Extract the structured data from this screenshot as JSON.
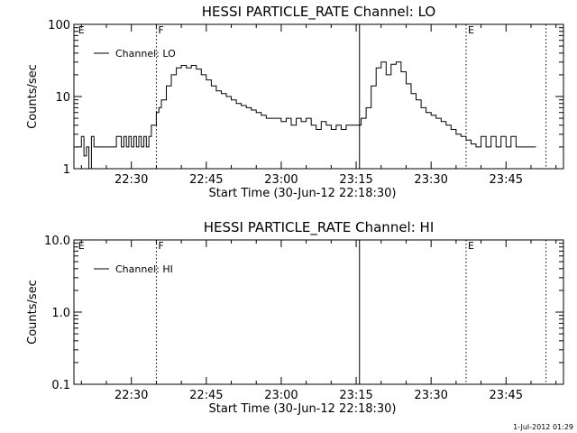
{
  "footer": {
    "timestamp": "1-Jul-2012 01:29"
  },
  "chart_data": [
    {
      "type": "line",
      "title": "HESSI PARTICLE_RATE Channel: LO",
      "ylabel": "Counts/sec",
      "xlabel": "Start Time (30-Jun-12 22:18:30)",
      "y_scale": "log",
      "ylim": [
        1,
        100
      ],
      "y_ticks": [
        1,
        10,
        100
      ],
      "y_tick_labels": [
        "1",
        "10",
        "100"
      ],
      "xlim": [
        "22:18:30",
        "23:56:30"
      ],
      "x_ticks": [
        "22:30",
        "22:45",
        "23:00",
        "23:15",
        "23:30",
        "23:45"
      ],
      "x_tick_labels": [
        "22:30",
        "22:45",
        "23:00",
        "23:15",
        "23:30",
        "23:45"
      ],
      "legend": {
        "position": "top-left",
        "entries": [
          "Channel: LO"
        ]
      },
      "markers": [
        {
          "time": "22:19:00",
          "label": "E",
          "style": "none"
        },
        {
          "time": "22:35:00",
          "label": "F",
          "style": "dotted"
        },
        {
          "time": "23:15:40",
          "label": "",
          "style": "solid"
        },
        {
          "time": "23:37:00",
          "label": "E",
          "style": "dotted"
        },
        {
          "time": "23:53:00",
          "label": "",
          "style": "dotted"
        }
      ],
      "series": [
        {
          "name": "Channel: LO",
          "x": [
            "22:19:00",
            "22:20:00",
            "22:20:30",
            "22:21:00",
            "22:21:30",
            "22:22:00",
            "22:22:30",
            "22:23:00",
            "22:24:00",
            "22:25:00",
            "22:26:00",
            "22:27:00",
            "22:28:00",
            "22:28:30",
            "22:29:00",
            "22:29:30",
            "22:30:00",
            "22:30:30",
            "22:31:00",
            "22:31:30",
            "22:32:00",
            "22:32:30",
            "22:33:00",
            "22:33:30",
            "22:34:00",
            "22:35:00",
            "22:35:30",
            "22:36:00",
            "22:37:00",
            "22:38:00",
            "22:39:00",
            "22:40:00",
            "22:41:00",
            "22:42:00",
            "22:43:00",
            "22:44:00",
            "22:45:00",
            "22:46:00",
            "22:47:00",
            "22:48:00",
            "22:49:00",
            "22:50:00",
            "22:51:00",
            "22:52:00",
            "22:53:00",
            "22:54:00",
            "22:55:00",
            "22:56:00",
            "22:57:00",
            "22:58:00",
            "22:59:00",
            "23:00:00",
            "23:01:00",
            "23:02:00",
            "23:03:00",
            "23:04:00",
            "23:05:00",
            "23:06:00",
            "23:07:00",
            "23:08:00",
            "23:09:00",
            "23:10:00",
            "23:11:00",
            "23:12:00",
            "23:13:00",
            "23:14:00",
            "23:15:00",
            "23:16:00",
            "23:17:00",
            "23:18:00",
            "23:19:00",
            "23:20:00",
            "23:21:00",
            "23:22:00",
            "23:23:00",
            "23:24:00",
            "23:25:00",
            "23:26:00",
            "23:27:00",
            "23:28:00",
            "23:29:00",
            "23:30:00",
            "23:31:00",
            "23:32:00",
            "23:33:00",
            "23:34:00",
            "23:35:00",
            "23:36:00",
            "23:37:00",
            "23:38:00",
            "23:39:00",
            "23:40:00",
            "23:41:00",
            "23:42:00",
            "23:43:00",
            "23:44:00",
            "23:45:00",
            "23:46:00",
            "23:47:00",
            "23:48:00",
            "23:49:00",
            "23:50:00",
            "23:51:00"
          ],
          "y": [
            2,
            2.8,
            1.5,
            2,
            1,
            2.8,
            2,
            2,
            2,
            2,
            2,
            2.8,
            2,
            2.8,
            2,
            2.8,
            2,
            2.8,
            2,
            2.8,
            2,
            2.8,
            2,
            2.8,
            4,
            6,
            7,
            9,
            14,
            20,
            25,
            27,
            25,
            27,
            24,
            20,
            17,
            14,
            12,
            11,
            10,
            9,
            8,
            7.5,
            7,
            6.5,
            6,
            5.5,
            5,
            5,
            5,
            4.5,
            5,
            4,
            5,
            4.5,
            5,
            4,
            3.5,
            4.5,
            4,
            3.5,
            4,
            3.5,
            4,
            4,
            4,
            5,
            7,
            14,
            25,
            30,
            20,
            28,
            30,
            22,
            15,
            11,
            9,
            7,
            6,
            5.5,
            5,
            4.5,
            4,
            3.5,
            3,
            2.8,
            2.5,
            2.2,
            2,
            2.8,
            2,
            2.8,
            2,
            2.8,
            2,
            2.8,
            2,
            2,
            2,
            2,
            2
          ]
        }
      ]
    },
    {
      "type": "line",
      "title": "HESSI PARTICLE_RATE Channel: HI",
      "ylabel": "Counts/sec",
      "xlabel": "Start Time (30-Jun-12 22:18:30)",
      "y_scale": "log",
      "ylim": [
        0.1,
        10
      ],
      "y_ticks": [
        0.1,
        1,
        10
      ],
      "y_tick_labels": [
        "0.1",
        "1.0",
        "10.0"
      ],
      "xlim": [
        "22:18:30",
        "23:56:30"
      ],
      "x_ticks": [
        "22:30",
        "22:45",
        "23:00",
        "23:15",
        "23:30",
        "23:45"
      ],
      "x_tick_labels": [
        "22:30",
        "22:45",
        "23:00",
        "23:15",
        "23:30",
        "23:45"
      ],
      "legend": {
        "position": "top-left",
        "entries": [
          "Channel: HI"
        ]
      },
      "markers": [
        {
          "time": "22:19:00",
          "label": "E",
          "style": "none"
        },
        {
          "time": "22:35:00",
          "label": "F",
          "style": "dotted"
        },
        {
          "time": "23:15:40",
          "label": "",
          "style": "solid"
        },
        {
          "time": "23:37:00",
          "label": "E",
          "style": "dotted"
        },
        {
          "time": "23:53:00",
          "label": "",
          "style": "dotted"
        }
      ],
      "series": [
        {
          "name": "Channel: HI",
          "x": [],
          "y": []
        }
      ]
    }
  ]
}
